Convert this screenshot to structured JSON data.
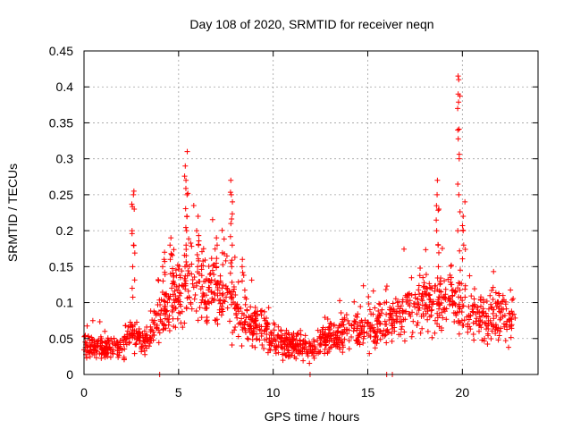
{
  "chart_data": {
    "type": "scatter",
    "title": "Day 108 of 2020, SRMTID for receiver neqn",
    "xlabel": "GPS time / hours",
    "ylabel": "SRMTID / TECUs",
    "xlim": [
      0,
      24
    ],
    "ylim": [
      0,
      0.45
    ],
    "xticks": [
      0,
      5,
      10,
      15,
      20
    ],
    "yticks": [
      0,
      0.05,
      0.1,
      0.15,
      0.2,
      0.25,
      0.3,
      0.35,
      0.4,
      0.45
    ],
    "xtick_labels": [
      "0",
      "5",
      "10",
      "15",
      "20"
    ],
    "ytick_labels": [
      "0",
      "0.05",
      "0.1",
      "0.15",
      "0.2",
      "0.25",
      "0.3",
      "0.35",
      "0.4",
      "0.45"
    ],
    "grid": true,
    "marker": "+",
    "color": "#ff0000",
    "envelope": {
      "description": "typical SRMTID level vs time (approximate median band)",
      "x": [
        0,
        1,
        2,
        2.5,
        3,
        3.5,
        4,
        4.5,
        5,
        5.5,
        6,
        6.5,
        7,
        7.5,
        8,
        8.5,
        9,
        9.5,
        10,
        11,
        12,
        13,
        14,
        15,
        16,
        17,
        18,
        19,
        19.5,
        20,
        20.5,
        21,
        22,
        22.8
      ],
      "y": [
        0.04,
        0.035,
        0.035,
        0.06,
        0.045,
        0.05,
        0.08,
        0.1,
        0.11,
        0.13,
        0.12,
        0.11,
        0.12,
        0.13,
        0.09,
        0.07,
        0.07,
        0.065,
        0.05,
        0.04,
        0.035,
        0.05,
        0.06,
        0.065,
        0.075,
        0.085,
        0.1,
        0.1,
        0.11,
        0.1,
        0.08,
        0.08,
        0.08,
        0.07
      ]
    },
    "spikes": [
      {
        "x": 2.6,
        "values": [
          0.12,
          0.15,
          0.18,
          0.2,
          0.23,
          0.25,
          0.255
        ]
      },
      {
        "x": 4.2,
        "values": [
          0.13,
          0.15,
          0.16,
          0.17
        ]
      },
      {
        "x": 4.6,
        "values": [
          0.14,
          0.16,
          0.18,
          0.19
        ]
      },
      {
        "x": 5.4,
        "values": [
          0.15,
          0.18,
          0.2,
          0.22,
          0.25,
          0.27,
          0.29,
          0.31
        ]
      },
      {
        "x": 6.0,
        "values": [
          0.15,
          0.18,
          0.2,
          0.22
        ]
      },
      {
        "x": 7.0,
        "values": [
          0.15,
          0.18,
          0.19
        ]
      },
      {
        "x": 7.8,
        "values": [
          0.15,
          0.18,
          0.21,
          0.24,
          0.25,
          0.27
        ]
      },
      {
        "x": 8.4,
        "values": [
          0.13,
          0.15,
          0.16
        ]
      },
      {
        "x": 18.7,
        "values": [
          0.15,
          0.18,
          0.2,
          0.23,
          0.25,
          0.27
        ]
      },
      {
        "x": 19.8,
        "values": [
          0.2,
          0.25,
          0.3,
          0.34,
          0.37,
          0.39,
          0.41,
          0.415
        ]
      },
      {
        "x": 20.1,
        "values": [
          0.18,
          0.2,
          0.22,
          0.24
        ]
      }
    ],
    "zero_points": [
      4.0,
      11.95,
      16.0,
      16.3
    ]
  }
}
